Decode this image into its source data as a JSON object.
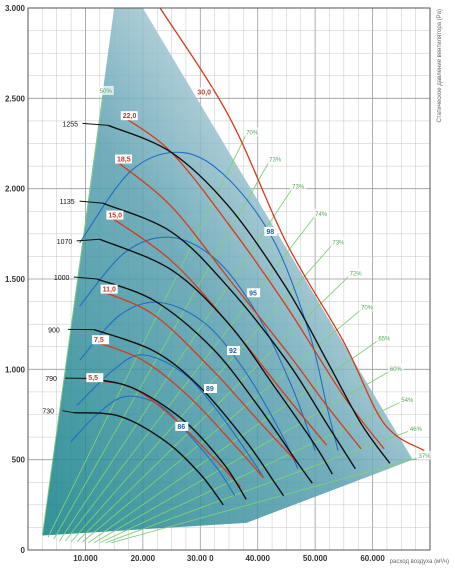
{
  "chart_data": {
    "type": "line",
    "xlabel": "расход воздуха (м³/ч)",
    "ylabel": "Статическое давление вентилятора (Pa)",
    "xlim": [
      0,
      70000
    ],
    "ylim": [
      0,
      3000
    ],
    "x_ticks": [
      {
        "value": 10000,
        "label": "10.000"
      },
      {
        "value": 20000,
        "label": "20.000"
      },
      {
        "value": 30000,
        "label": "30.00 0"
      },
      {
        "value": 40000,
        "label": "40.000"
      },
      {
        "value": 50000,
        "label": "50.000"
      },
      {
        "value": 60000,
        "label": "60.000"
      }
    ],
    "y_ticks": [
      {
        "value": 0,
        "label": "0"
      },
      {
        "value": 500,
        "label": "500"
      },
      {
        "value": 1000,
        "label": "1.000"
      },
      {
        "value": 1500,
        "label": "1.500"
      },
      {
        "value": 2000,
        "label": "2.000"
      },
      {
        "value": 2500,
        "label": "2.500"
      },
      {
        "value": 3000,
        "label": "3.000"
      }
    ],
    "grid": true,
    "colors": {
      "rpm_curve": "#111111",
      "power_curve": "#d63a1a",
      "efficiency_curve": "#1f6fc4",
      "percent_line": "#7fcf7a",
      "envelope_dark": "#0f7f86",
      "envelope_light": "#e4ecf0"
    },
    "envelope": [
      [
        2500,
        80
      ],
      [
        15000,
        3000
      ],
      [
        20000,
        3000
      ],
      [
        67000,
        500
      ],
      [
        38000,
        150
      ]
    ],
    "rpm_curves": [
      {
        "label": "1255",
        "points": [
          [
            14000,
            2350
          ],
          [
            25000,
            2200
          ],
          [
            35000,
            1900
          ],
          [
            45000,
            1450
          ],
          [
            52000,
            1050
          ],
          [
            58000,
            700
          ],
          [
            63000,
            480
          ]
        ],
        "label_at": [
          6000,
          2350
        ]
      },
      {
        "label": "1135",
        "points": [
          [
            13000,
            1920
          ],
          [
            25000,
            1760
          ],
          [
            35000,
            1450
          ],
          [
            45000,
            1050
          ],
          [
            52000,
            700
          ],
          [
            57000,
            450
          ]
        ],
        "label_at": [
          5500,
          1920
        ]
      },
      {
        "label": "1070",
        "points": [
          [
            12500,
            1720
          ],
          [
            25000,
            1550
          ],
          [
            35000,
            1250
          ],
          [
            43000,
            900
          ],
          [
            50000,
            580
          ],
          [
            53000,
            420
          ]
        ],
        "label_at": [
          5000,
          1700
        ]
      },
      {
        "label": "1000",
        "points": [
          [
            12000,
            1500
          ],
          [
            22000,
            1380
          ],
          [
            32000,
            1120
          ],
          [
            40000,
            800
          ],
          [
            47000,
            480
          ],
          [
            49500,
            370
          ]
        ],
        "label_at": [
          4500,
          1500
        ]
      },
      {
        "label": "900",
        "points": [
          [
            11500,
            1220
          ],
          [
            22000,
            1100
          ],
          [
            30000,
            900
          ],
          [
            38000,
            600
          ],
          [
            43000,
            370
          ],
          [
            44500,
            300
          ]
        ],
        "label_at": [
          3500,
          1210
        ]
      },
      {
        "label": "790",
        "points": [
          [
            10000,
            950
          ],
          [
            18000,
            900
          ],
          [
            27000,
            720
          ],
          [
            34000,
            480
          ],
          [
            38000,
            280
          ]
        ],
        "label_at": [
          3000,
          940
        ]
      },
      {
        "label": "730",
        "points": [
          [
            8000,
            760
          ],
          [
            16000,
            740
          ],
          [
            24000,
            600
          ],
          [
            30000,
            420
          ],
          [
            34000,
            250
          ]
        ],
        "label_at": [
          2500,
          760
        ]
      }
    ],
    "power_curves": [
      {
        "label": "30,0",
        "points": [
          [
            23000,
            3000
          ],
          [
            35000,
            2400
          ],
          [
            45000,
            1700
          ],
          [
            55000,
            1150
          ],
          [
            62000,
            700
          ],
          [
            69000,
            550
          ]
        ],
        "label_at": [
          29500,
          2520
        ]
      },
      {
        "label": "22,0",
        "points": [
          [
            16500,
            2400
          ],
          [
            25000,
            2200
          ],
          [
            35000,
            1800
          ],
          [
            45000,
            1350
          ],
          [
            55000,
            850
          ],
          [
            62000,
            560
          ]
        ],
        "label_at": [
          16500,
          2390
        ]
      },
      {
        "label": "18,5",
        "points": [
          [
            15500,
            2150
          ],
          [
            25000,
            1900
          ],
          [
            35000,
            1500
          ],
          [
            45000,
            1100
          ],
          [
            52000,
            800
          ],
          [
            58000,
            560
          ]
        ],
        "label_at": [
          15500,
          2150
        ]
      },
      {
        "label": "15,0",
        "points": [
          [
            14500,
            1840
          ],
          [
            25000,
            1600
          ],
          [
            35000,
            1250
          ],
          [
            45000,
            850
          ],
          [
            52000,
            580
          ]
        ],
        "label_at": [
          14000,
          1840
        ]
      },
      {
        "label": "11,0",
        "points": [
          [
            13000,
            1430
          ],
          [
            22000,
            1300
          ],
          [
            32000,
            1000
          ],
          [
            40000,
            720
          ],
          [
            47000,
            480
          ]
        ],
        "label_at": [
          13000,
          1430
        ]
      },
      {
        "label": "7,5",
        "points": [
          [
            12000,
            1150
          ],
          [
            20000,
            1050
          ],
          [
            28000,
            850
          ],
          [
            36000,
            580
          ],
          [
            41000,
            400
          ]
        ],
        "label_at": [
          11500,
          1150
        ]
      },
      {
        "label": "5,5",
        "points": [
          [
            11000,
            940
          ],
          [
            18000,
            900
          ],
          [
            25000,
            740
          ],
          [
            32000,
            520
          ],
          [
            37000,
            350
          ]
        ],
        "label_at": [
          10500,
          940
        ]
      }
    ],
    "efficiency_curves": [
      {
        "label": "98",
        "points": [
          [
            9000,
            1700
          ],
          [
            18000,
            2100
          ],
          [
            27000,
            2200
          ],
          [
            35000,
            2050
          ],
          [
            43000,
            1700
          ],
          [
            49000,
            1200
          ],
          [
            52000,
            800
          ],
          [
            54000,
            550
          ]
        ],
        "label_at": [
          41500,
          1750
        ]
      },
      {
        "label": "95",
        "points": [
          [
            9000,
            1350
          ],
          [
            17000,
            1650
          ],
          [
            25000,
            1730
          ],
          [
            33000,
            1600
          ],
          [
            40000,
            1300
          ],
          [
            46000,
            900
          ],
          [
            50000,
            550
          ]
        ],
        "label_at": [
          38500,
          1410
        ]
      },
      {
        "label": "92",
        "points": [
          [
            9000,
            1050
          ],
          [
            16000,
            1300
          ],
          [
            23000,
            1370
          ],
          [
            31000,
            1250
          ],
          [
            38000,
            980
          ],
          [
            44000,
            650
          ],
          [
            47000,
            450
          ]
        ],
        "label_at": [
          35000,
          1090
        ]
      },
      {
        "label": "89",
        "points": [
          [
            8500,
            800
          ],
          [
            15000,
            1000
          ],
          [
            20000,
            1080
          ],
          [
            27000,
            980
          ],
          [
            33000,
            770
          ],
          [
            39000,
            500
          ],
          [
            41000,
            400
          ]
        ],
        "label_at": [
          31000,
          880
        ]
      },
      {
        "label": "86",
        "points": [
          [
            7500,
            600
          ],
          [
            12000,
            750
          ],
          [
            17000,
            850
          ],
          [
            23000,
            800
          ],
          [
            28000,
            640
          ],
          [
            33000,
            450
          ],
          [
            36000,
            300
          ]
        ],
        "label_at": [
          26000,
          670
        ]
      }
    ],
    "percent_lines": [
      {
        "label": "50%",
        "points": [
          [
            2500,
            80
          ],
          [
            13000,
            2500
          ]
        ],
        "label_at": [
          12500,
          2530
        ]
      },
      {
        "label": "70%",
        "points": [
          [
            3500,
            70
          ],
          [
            38000,
            2300
          ]
        ],
        "label_at": [
          38000,
          2300
        ]
      },
      {
        "label": "73%",
        "points": [
          [
            4500,
            60
          ],
          [
            42000,
            2150
          ]
        ],
        "label_at": [
          42000,
          2150
        ]
      },
      {
        "label": "73%",
        "points": [
          [
            5500,
            50
          ],
          [
            46000,
            2000
          ]
        ],
        "label_at": [
          46000,
          2000
        ]
      },
      {
        "label": "74%",
        "points": [
          [
            6500,
            50
          ],
          [
            50000,
            1850
          ]
        ],
        "label_at": [
          50000,
          1850
        ]
      },
      {
        "label": "73%",
        "points": [
          [
            7500,
            45
          ],
          [
            53000,
            1690
          ]
        ],
        "label_at": [
          53000,
          1690
        ]
      },
      {
        "label": "72%",
        "points": [
          [
            8500,
            45
          ],
          [
            56000,
            1520
          ]
        ],
        "label_at": [
          56000,
          1520
        ]
      },
      {
        "label": "70%",
        "points": [
          [
            9500,
            45
          ],
          [
            58000,
            1330
          ]
        ],
        "label_at": [
          58000,
          1330
        ]
      },
      {
        "label": "65%",
        "points": [
          [
            10500,
            40
          ],
          [
            61000,
            1160
          ]
        ],
        "label_at": [
          61000,
          1160
        ]
      },
      {
        "label": "60%",
        "points": [
          [
            11500,
            40
          ],
          [
            63000,
            990
          ]
        ],
        "label_at": [
          63000,
          990
        ]
      },
      {
        "label": "54%",
        "points": [
          [
            12500,
            40
          ],
          [
            65000,
            820
          ]
        ],
        "label_at": [
          65000,
          820
        ]
      },
      {
        "label": "46%",
        "points": [
          [
            13500,
            40
          ],
          [
            66500,
            660
          ]
        ],
        "label_at": [
          66500,
          660
        ]
      },
      {
        "label": "37%",
        "points": [
          [
            14500,
            40
          ],
          [
            68000,
            510
          ]
        ],
        "label_at": [
          68000,
          510
        ]
      }
    ]
  }
}
